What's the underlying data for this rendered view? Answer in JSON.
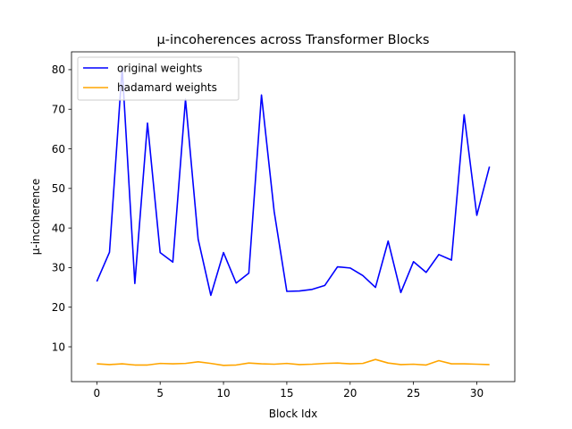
{
  "chart_data": {
    "type": "line",
    "title": "µ-incoherences across Transformer Blocks",
    "xlabel": "Block Idx",
    "ylabel": "µ-incoherence",
    "xlim": [
      -2.0,
      33.0
    ],
    "ylim": [
      1.2,
      84.5
    ],
    "xticks": [
      0,
      5,
      10,
      15,
      20,
      25,
      30
    ],
    "yticks": [
      10,
      20,
      30,
      40,
      50,
      60,
      70,
      80
    ],
    "grid": false,
    "legend_position": "top-left",
    "x": [
      0,
      1,
      2,
      3,
      4,
      5,
      6,
      7,
      8,
      9,
      10,
      11,
      12,
      13,
      14,
      15,
      16,
      17,
      18,
      19,
      20,
      21,
      22,
      23,
      24,
      25,
      26,
      27,
      28,
      29,
      30,
      31
    ],
    "series": [
      {
        "name": "original weights",
        "color": "#0000ff",
        "values": [
          26.5,
          33.9,
          80.5,
          26.0,
          66.5,
          33.8,
          31.4,
          72.5,
          37.2,
          23.0,
          33.8,
          26.1,
          28.6,
          73.6,
          44.2,
          24.0,
          24.1,
          24.5,
          25.5,
          30.2,
          29.9,
          28.0,
          25.0,
          36.7,
          23.7,
          31.5,
          28.8,
          33.3,
          31.9,
          68.6,
          43.2,
          55.5
        ]
      },
      {
        "name": "hadamard weights",
        "color": "#ffa500",
        "values": [
          5.7,
          5.5,
          5.7,
          5.4,
          5.4,
          5.8,
          5.7,
          5.8,
          6.2,
          5.8,
          5.3,
          5.4,
          5.9,
          5.7,
          5.6,
          5.8,
          5.5,
          5.6,
          5.8,
          5.9,
          5.7,
          5.8,
          6.8,
          5.9,
          5.5,
          5.6,
          5.4,
          6.5,
          5.7,
          5.7,
          5.6,
          5.5
        ]
      }
    ]
  }
}
